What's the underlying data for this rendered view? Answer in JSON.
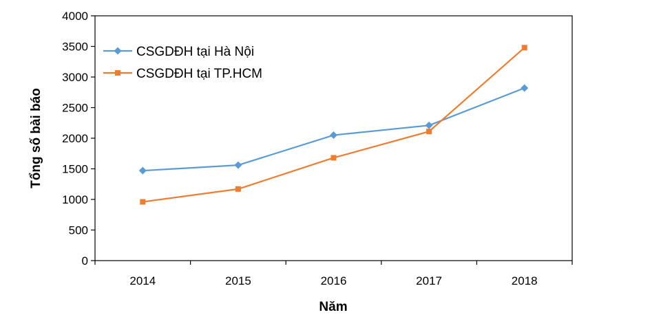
{
  "chart_data": {
    "type": "line",
    "title": "",
    "xlabel": "Năm",
    "ylabel": "Tổng số bài báo",
    "categories": [
      "2014",
      "2015",
      "2016",
      "2017",
      "2018"
    ],
    "ylim": [
      0,
      4000
    ],
    "yticks": [
      "0",
      "500",
      "1000",
      "1500",
      "2000",
      "2500",
      "3000",
      "3500",
      "4000"
    ],
    "grid": false,
    "legend_position": "top-left",
    "series": [
      {
        "name": "CSGDĐH tại Hà Nội",
        "values": [
          1470,
          1560,
          2050,
          2210,
          2820
        ],
        "color": "#5b9bd5",
        "marker": "diamond"
      },
      {
        "name": "CSGDĐH tại TP.HCM",
        "values": [
          960,
          1170,
          1680,
          2110,
          3480
        ],
        "color": "#ed7d31",
        "marker": "square"
      }
    ]
  }
}
